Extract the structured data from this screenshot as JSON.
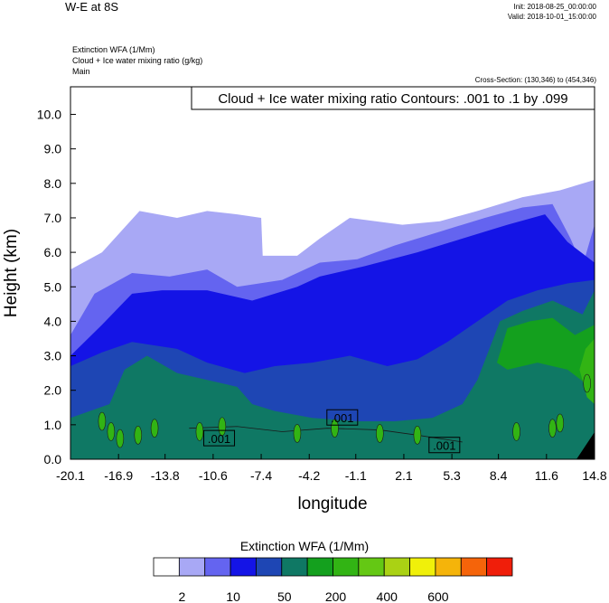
{
  "header": {
    "title": "W-E at 8S",
    "init": "Init: 2018-08-25_00:00:00",
    "valid": "Valid: 2018-10-01_15:00:00",
    "line1": "Extinction WFA   (1/Mm)",
    "line2": "Cloud + Ice water mixing ratio   (g/kg)",
    "line3": "Main",
    "cross_section": "Cross-Section: (130,346) to (454,346)"
  },
  "contour_label": "Cloud + Ice water mixing ratio Contours: .001 to .1 by .099",
  "colorbar": {
    "title": "Extinction WFA  (1/Mm)",
    "colors": [
      "#ffffff",
      "#a8a8f5",
      "#6464f0",
      "#1414e6",
      "#1e46b4",
      "#0f7864",
      "#14a01e",
      "#32b414",
      "#64c814",
      "#aad214",
      "#f0f00a",
      "#f5b40a",
      "#f5640a",
      "#f01e0a"
    ],
    "labels": [
      "2",
      "10",
      "50",
      "200",
      "400",
      "600"
    ]
  },
  "chart_data": {
    "type": "contour-cross-section",
    "xlabel": "longitude",
    "ylabel": "Height (km)",
    "xlim": [
      -20.1,
      14.8
    ],
    "ylim": [
      0.0,
      10.8
    ],
    "xticks": [
      "-20.1",
      "-16.9",
      "-13.8",
      "-10.6",
      "-7.4",
      "-4.2",
      "-1.1",
      "2.1",
      "5.3",
      "8.4",
      "11.6",
      "14.8"
    ],
    "yticks": [
      "0.0",
      "1.0",
      "2.0",
      "3.0",
      "4.0",
      "5.0",
      "6.0",
      "7.0",
      "8.0",
      "9.0",
      "10.0"
    ],
    "contour_labels": [
      {
        "text": ".001",
        "x": -10.2,
        "y": 0.6
      },
      {
        "text": ".001",
        "x": -2.0,
        "y": 1.2
      },
      {
        "text": ".001",
        "x": 4.8,
        "y": 0.4
      }
    ],
    "filled_levels": [
      {
        "level": 2,
        "top": [
          [
            -20.1,
            5.5
          ],
          [
            -18.0,
            6.0
          ],
          [
            -15.5,
            7.2
          ],
          [
            -13.0,
            7.0
          ],
          [
            -11.0,
            7.2
          ],
          [
            -9.0,
            7.1
          ],
          [
            -7.4,
            7.0
          ],
          [
            -7.3,
            5.9
          ],
          [
            -5.0,
            5.9
          ],
          [
            -3.5,
            6.4
          ],
          [
            -1.5,
            7.0
          ],
          [
            2.0,
            6.8
          ],
          [
            4.5,
            6.9
          ],
          [
            7.0,
            7.2
          ],
          [
            10.0,
            7.6
          ],
          [
            12.5,
            7.8
          ],
          [
            14.8,
            8.1
          ]
        ]
      },
      {
        "level": 10,
        "top": [
          [
            -20.1,
            3.6
          ],
          [
            -18.5,
            4.8
          ],
          [
            -16.0,
            5.4
          ],
          [
            -13.5,
            5.3
          ],
          [
            -11.0,
            5.5
          ],
          [
            -9.0,
            5.0
          ],
          [
            -6.0,
            5.2
          ],
          [
            -3.5,
            5.7
          ],
          [
            -1.0,
            5.8
          ],
          [
            1.5,
            6.2
          ],
          [
            4.5,
            6.6
          ],
          [
            7.5,
            7.0
          ],
          [
            10.0,
            7.3
          ],
          [
            12.0,
            7.4
          ],
          [
            13.2,
            6.4
          ],
          [
            14.0,
            5.6
          ],
          [
            14.8,
            6.8
          ]
        ]
      },
      {
        "level": 50,
        "top": [
          [
            -20.1,
            3.0
          ],
          [
            -18.0,
            3.9
          ],
          [
            -16.0,
            4.8
          ],
          [
            -14.0,
            4.9
          ],
          [
            -11.0,
            4.9
          ],
          [
            -8.0,
            4.6
          ],
          [
            -5.0,
            5.0
          ],
          [
            -3.5,
            5.3
          ],
          [
            -0.5,
            5.6
          ],
          [
            3.0,
            6.0
          ],
          [
            6.0,
            6.4
          ],
          [
            9.0,
            6.8
          ],
          [
            11.5,
            7.1
          ],
          [
            13.0,
            6.3
          ],
          [
            14.8,
            5.7
          ]
        ]
      },
      {
        "level": 50,
        "hole": true,
        "top": [
          [
            -6.0,
            2.3
          ],
          [
            -3.5,
            2.2
          ],
          [
            -1.0,
            2.1
          ],
          [
            1.0,
            1.8
          ],
          [
            3.0,
            1.5
          ],
          [
            4.0,
            1.1
          ]
        ],
        "bottom": [
          [
            4.0,
            1.1
          ],
          [
            2.0,
            1.0
          ],
          [
            -1.0,
            1.05
          ],
          [
            -4.0,
            1.0
          ],
          [
            -6.0,
            1.2
          ],
          [
            -6.0,
            2.3
          ]
        ]
      },
      {
        "level": 100,
        "top": [
          [
            -20.1,
            2.7
          ],
          [
            -18.0,
            3.1
          ],
          [
            -16.0,
            3.4
          ],
          [
            -13.0,
            3.2
          ],
          [
            -11.0,
            2.8
          ],
          [
            -8.5,
            2.5
          ],
          [
            -6.5,
            2.7
          ],
          [
            -4.0,
            2.8
          ],
          [
            -1.5,
            3.0
          ],
          [
            1.0,
            2.7
          ],
          [
            3.0,
            2.9
          ],
          [
            5.0,
            3.4
          ],
          [
            7.0,
            4.0
          ],
          [
            9.0,
            4.6
          ],
          [
            11.0,
            4.9
          ],
          [
            13.0,
            5.1
          ],
          [
            14.8,
            5.2
          ]
        ]
      },
      {
        "level": 200,
        "top": [
          [
            -20.1,
            1.2
          ],
          [
            -17.5,
            1.6
          ],
          [
            -16.5,
            2.6
          ],
          [
            -15.0,
            3.0
          ],
          [
            -13.0,
            2.5
          ],
          [
            -11.0,
            2.3
          ],
          [
            -9.0,
            2.1
          ],
          [
            -8.0,
            1.6
          ],
          [
            -6.5,
            1.4
          ],
          [
            -4.0,
            1.2
          ],
          [
            -1.0,
            1.1
          ],
          [
            1.5,
            1.1
          ],
          [
            4.0,
            1.2
          ],
          [
            6.0,
            1.6
          ],
          [
            7.0,
            2.3
          ],
          [
            8.5,
            4.0
          ],
          [
            10.0,
            4.3
          ],
          [
            12.0,
            4.6
          ],
          [
            14.0,
            4.2
          ],
          [
            14.8,
            4.9
          ]
        ]
      },
      {
        "level": 300,
        "top": [
          [
            8.3,
            2.8
          ],
          [
            9.0,
            3.8
          ],
          [
            10.5,
            4.0
          ],
          [
            12.0,
            4.1
          ],
          [
            13.5,
            3.6
          ],
          [
            14.8,
            3.9
          ],
          [
            14.8,
            2.0
          ],
          [
            13.0,
            2.6
          ],
          [
            11.0,
            2.8
          ],
          [
            9.0,
            2.6
          ]
        ]
      },
      {
        "level": 400,
        "top": [
          [
            13.8,
            2.6
          ],
          [
            14.2,
            3.2
          ],
          [
            14.8,
            3.5
          ],
          [
            14.8,
            1.6
          ],
          [
            14.3,
            1.8
          ]
        ]
      }
    ]
  }
}
